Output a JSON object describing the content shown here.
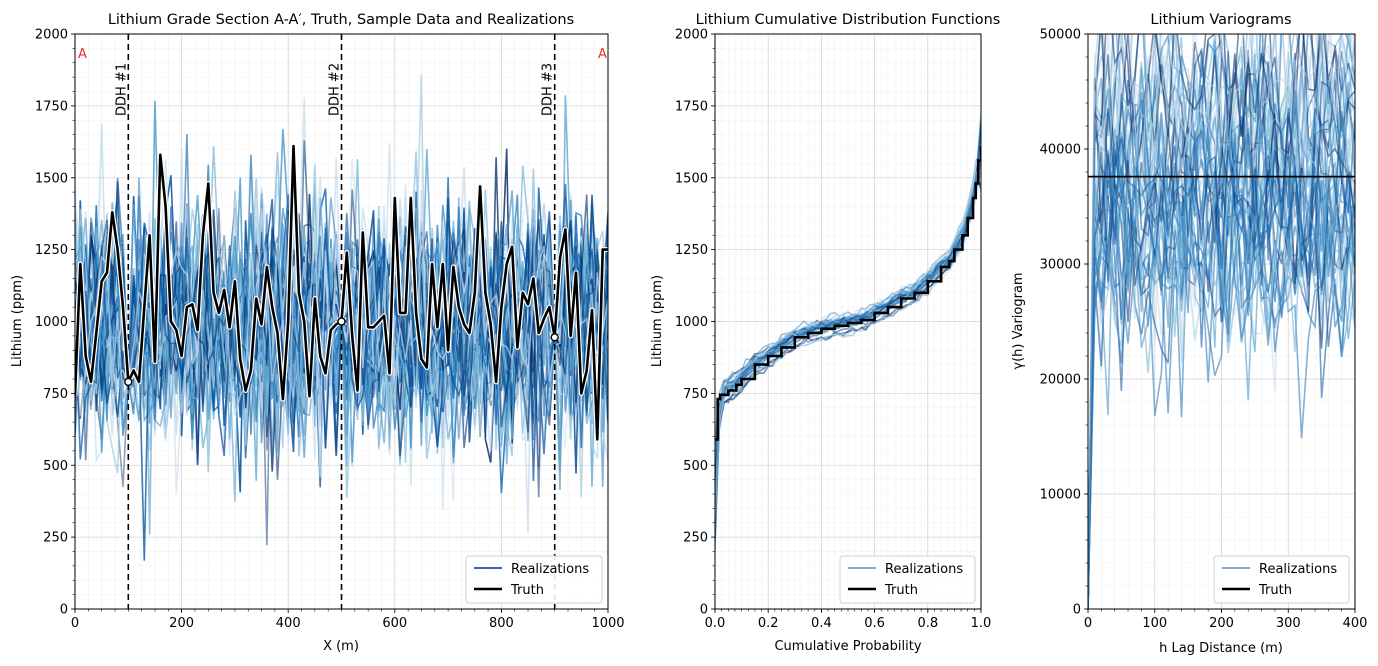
{
  "chart_data": [
    {
      "type": "line",
      "title": "Lithium Grade Section A-A′, Truth, Sample Data and Realizations",
      "xlabel": "X (m)",
      "ylabel": "Lithium (ppm)",
      "xlim": [
        0,
        1000
      ],
      "ylim": [
        0,
        2000
      ],
      "xticks": [
        "0",
        "200",
        "400",
        "600",
        "800",
        "1000"
      ],
      "yticks": [
        "0",
        "250",
        "500",
        "750",
        "1000",
        "1250",
        "1500",
        "1750",
        "2000"
      ],
      "grid": true,
      "section_labels": {
        "start": "A",
        "end": "A′"
      },
      "drillholes": [
        {
          "label": "DDH #1",
          "x": 100,
          "sample_value": 790
        },
        {
          "label": "DDH #2",
          "x": 500,
          "sample_value": 1000
        },
        {
          "label": "DDH #3",
          "x": 900,
          "sample_value": 945
        }
      ],
      "truth": {
        "name": "Truth",
        "x": [
          0,
          10,
          20,
          30,
          40,
          50,
          60,
          70,
          80,
          90,
          100,
          110,
          120,
          130,
          140,
          150,
          160,
          170,
          180,
          190,
          200,
          210,
          220,
          230,
          240,
          250,
          260,
          270,
          280,
          290,
          300,
          310,
          320,
          330,
          340,
          350,
          360,
          370,
          380,
          390,
          400,
          410,
          420,
          430,
          440,
          450,
          460,
          470,
          480,
          490,
          500,
          510,
          520,
          530,
          540,
          550,
          560,
          570,
          580,
          590,
          600,
          610,
          620,
          630,
          640,
          650,
          660,
          670,
          680,
          690,
          700,
          710,
          720,
          730,
          740,
          750,
          760,
          770,
          780,
          790,
          800,
          810,
          820,
          830,
          840,
          850,
          860,
          870,
          880,
          890,
          900,
          910,
          920,
          930,
          940,
          950,
          960,
          970,
          980,
          990,
          1000
        ],
        "values": [
          740,
          1200,
          880,
          790,
          960,
          1140,
          1170,
          1380,
          1250,
          1050,
          790,
          830,
          790,
          1050,
          1300,
          860,
          1580,
          1400,
          1000,
          970,
          880,
          1050,
          1060,
          970,
          1300,
          1480,
          1100,
          1030,
          1110,
          980,
          1140,
          870,
          760,
          830,
          1080,
          990,
          1190,
          1050,
          960,
          730,
          1000,
          1610,
          1100,
          1000,
          740,
          1080,
          880,
          820,
          970,
          990,
          1000,
          1240,
          950,
          760,
          1310,
          980,
          980,
          1000,
          1020,
          820,
          1430,
          1030,
          1030,
          1430,
          1030,
          870,
          840,
          1200,
          980,
          1200,
          900,
          1190,
          1050,
          990,
          960,
          1100,
          1470,
          1100,
          990,
          790,
          1050,
          1200,
          1260,
          910,
          1100,
          1060,
          1150,
          960,
          1010,
          1050,
          945,
          1220,
          1320,
          950,
          1170,
          750,
          830,
          1040,
          590,
          1250,
          1250
        ]
      },
      "realizations_count": 50,
      "legend": [
        {
          "label": "Realizations",
          "color": "#3a68a6"
        },
        {
          "label": "Truth",
          "color": "#000000"
        }
      ],
      "legend_position": "lower right"
    },
    {
      "type": "line",
      "title": "Lithium Cumulative Distribution Functions",
      "xlabel": "Cumulative Probability",
      "ylabel": "Lithium (ppm)",
      "xlim": [
        0.0,
        1.0
      ],
      "ylim": [
        0,
        2000
      ],
      "xticks": [
        "0.0",
        "0.2",
        "0.4",
        "0.6",
        "0.8",
        "1.0"
      ],
      "yticks": [
        "0",
        "250",
        "500",
        "750",
        "1000",
        "1250",
        "1500",
        "1750",
        "2000"
      ],
      "grid": true,
      "truth_cdf": {
        "name": "Truth",
        "p": [
          0.0,
          0.01,
          0.02,
          0.05,
          0.08,
          0.1,
          0.15,
          0.2,
          0.25,
          0.3,
          0.35,
          0.4,
          0.45,
          0.5,
          0.55,
          0.6,
          0.65,
          0.7,
          0.75,
          0.8,
          0.85,
          0.88,
          0.9,
          0.93,
          0.95,
          0.97,
          0.98,
          0.99,
          1.0
        ],
        "values": [
          590,
          730,
          745,
          760,
          780,
          800,
          850,
          880,
          910,
          945,
          960,
          975,
          985,
          995,
          1005,
          1030,
          1050,
          1080,
          1100,
          1140,
          1190,
          1210,
          1250,
          1300,
          1360,
          1430,
          1480,
          1560,
          1610
        ]
      },
      "legend": [
        {
          "label": "Realizations",
          "color": "#8aa6c8"
        },
        {
          "label": "Truth",
          "color": "#000000"
        }
      ],
      "legend_position": "lower right"
    },
    {
      "type": "line",
      "title": "Lithium Variograms",
      "xlabel": "h Lag Distance (m)",
      "ylabel": "γ(h) Variogram",
      "xlim": [
        0,
        400
      ],
      "ylim": [
        0,
        50000
      ],
      "xticks": [
        "0",
        "100",
        "200",
        "300",
        "400"
      ],
      "yticks": [
        "0",
        "10000",
        "20000",
        "30000",
        "40000",
        "50000"
      ],
      "grid": true,
      "truth_sill": 37600,
      "legend": [
        {
          "label": "Realizations",
          "color": "#8aa6c8"
        },
        {
          "label": "Truth",
          "color": "#000000"
        }
      ],
      "legend_position": "lower right"
    }
  ]
}
